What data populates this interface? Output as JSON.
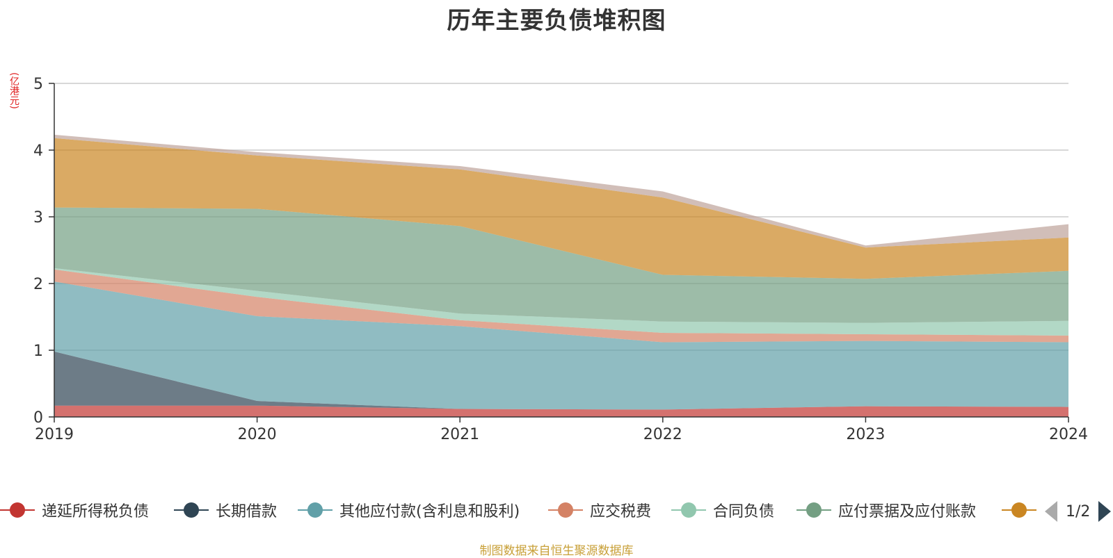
{
  "title": "历年主要负债堆积图",
  "unit": "(亿港元)",
  "source_note": "制图数据来自恒生聚源数据库",
  "pager": {
    "text": "1/2"
  },
  "colors": [
    "#c23531",
    "#2f4554",
    "#61a0a8",
    "#d48265",
    "#91c7ae",
    "#749f83",
    "#ca8622",
    "#bda29a"
  ],
  "chart_data": {
    "type": "area",
    "stacked": true,
    "x": [
      "2019",
      "2020",
      "2021",
      "2022",
      "2023",
      "2024"
    ],
    "ylim": [
      0,
      5
    ],
    "yticks": [
      "0",
      "1",
      "2",
      "3",
      "4",
      "5"
    ],
    "grid": true,
    "legend_position": "bottom",
    "series": [
      {
        "name": "递延所得税负债",
        "values": [
          0.17,
          0.17,
          0.12,
          0.11,
          0.16,
          0.15
        ]
      },
      {
        "name": "长期借款",
        "values": [
          0.81,
          0.07,
          0.0,
          0.0,
          0.0,
          0.0
        ]
      },
      {
        "name": "其他应付款(含利息和股利)",
        "values": [
          1.05,
          1.27,
          1.24,
          1.01,
          0.98,
          0.97
        ]
      },
      {
        "name": "应交税费",
        "values": [
          0.18,
          0.29,
          0.09,
          0.14,
          0.1,
          0.1
        ]
      },
      {
        "name": "合同负债",
        "values": [
          0.02,
          0.09,
          0.1,
          0.17,
          0.17,
          0.22
        ]
      },
      {
        "name": "应付票据及应付账款",
        "values": [
          0.91,
          1.23,
          1.31,
          0.7,
          0.66,
          0.75
        ]
      },
      {
        "values": [
          1.04,
          0.8,
          0.85,
          1.16,
          0.47,
          0.5
        ]
      },
      {
        "values": [
          0.05,
          0.05,
          0.05,
          0.09,
          0.03,
          0.2
        ]
      }
    ]
  }
}
